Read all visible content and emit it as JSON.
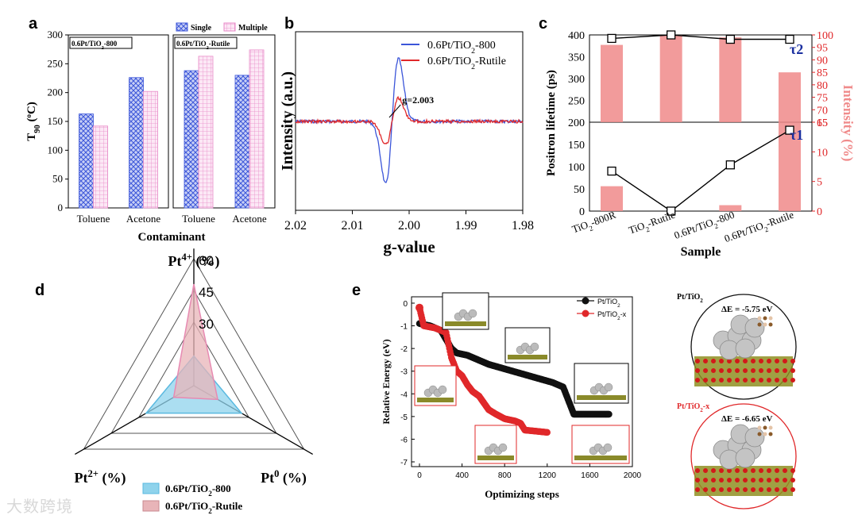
{
  "panels": {
    "a": {
      "label": "a"
    },
    "b": {
      "label": "b"
    },
    "c": {
      "label": "c"
    },
    "d": {
      "label": "d"
    },
    "e": {
      "label": "e"
    }
  },
  "watermark": "大数跨境",
  "colors": {
    "blue": "#3b55d9",
    "pink": "#e88ac8",
    "red": "#e0282a",
    "salmon": "#f08a8a",
    "cyan": "#8fd3ec",
    "rose": "#e8b4b8",
    "black": "#111111"
  },
  "chart_data": [
    {
      "id": "a",
      "type": "bar",
      "ylabel": "T90 (ºC)",
      "xlabel": "Contaminant",
      "ylim": [
        0,
        300
      ],
      "yticks": [
        0,
        50,
        100,
        150,
        200,
        250,
        300
      ],
      "legend": [
        "Single",
        "Multiple"
      ],
      "groups": [
        {
          "box_label": "0.6Pt/TiO2-800",
          "categories": [
            "Toluene",
            "Acetone"
          ],
          "Single": [
            163,
            226
          ],
          "Multiple": [
            142,
            202
          ]
        },
        {
          "box_label": "0.6Pt/TiO2-Rutile",
          "categories": [
            "Toluene",
            "Acetone"
          ],
          "Single": [
            238,
            230
          ],
          "Multiple": [
            263,
            274
          ]
        }
      ]
    },
    {
      "id": "b",
      "type": "line",
      "xlabel": "g-value",
      "ylabel": "Intensity (a.u.)",
      "xlim": [
        2.02,
        1.98
      ],
      "xticks": [
        "2.02",
        "2.01",
        "2.00",
        "1.99",
        "1.98"
      ],
      "annotation": "g=2.003",
      "series": [
        {
          "name": "0.6Pt/TiO2-800",
          "color": "#3b55d9"
        },
        {
          "name": "0.6Pt/TiO2-Rutile",
          "color": "#e0282a"
        }
      ]
    },
    {
      "id": "c",
      "type": "bar",
      "xlabel": "Sample",
      "ylabel_left": "Positron lifetime (ps)",
      "ylabel_right": "Intensity (%)",
      "categories": [
        "TiO2-800R",
        "TiO2-Rutile",
        "0.6Pt/TiO2-800",
        "0.6Pt/TiO2-Rutile"
      ],
      "top": {
        "ylim_left": [
          200,
          400
        ],
        "ylim_right": [
          65,
          100
        ],
        "yticks_left": [
          200,
          250,
          300,
          350,
          400
        ],
        "yticks_right": [
          65,
          70,
          75,
          80,
          85,
          90,
          95,
          100
        ],
        "tau2_ps": [
          392,
          400,
          390,
          390
        ],
        "intensity_pct": [
          96,
          100,
          99,
          85
        ],
        "series_label": "τ2"
      },
      "bottom": {
        "ylim_left": [
          0,
          200
        ],
        "ylim_right": [
          0,
          15
        ],
        "yticks_left": [
          0,
          50,
          100,
          150,
          200
        ],
        "yticks_right": [
          0,
          5,
          10,
          15
        ],
        "tau1_ps": [
          90,
          0,
          104,
          182
        ],
        "intensity_pct": [
          4.2,
          0,
          1.0,
          15
        ],
        "series_label": "τ1"
      }
    },
    {
      "id": "d",
      "type": "radar",
      "axes": [
        "Pt4+ (%)",
        "Pt0 (%)",
        "Pt2+ (%)"
      ],
      "rings": [
        30,
        45,
        60
      ],
      "max": 60,
      "series": [
        {
          "name": "0.6Pt/TiO2-800",
          "color": "#8fd3ec",
          "values": [
            14,
            26,
            26
          ]
        },
        {
          "name": "0.6Pt/TiO2-Rutile",
          "color": "#e8b4b8",
          "values": [
            48,
            13,
            11
          ]
        }
      ]
    },
    {
      "id": "e",
      "type": "scatter",
      "xlabel": "Optimizing steps",
      "ylabel": "Relative Energy (eV)",
      "xlim": [
        0,
        2000
      ],
      "ylim": [
        -7,
        0
      ],
      "xticks": [
        0,
        400,
        800,
        1200,
        1600,
        2000
      ],
      "yticks": [
        0,
        -1,
        -2,
        -3,
        -4,
        -5,
        -6,
        -7
      ],
      "series": [
        {
          "name": "Pt/TiO2",
          "color": "#111111",
          "points": [
            [
              0,
              -0.9
            ],
            [
              100,
              -1.0
            ],
            [
              200,
              -1.2
            ],
            [
              250,
              -1.6
            ],
            [
              300,
              -2.0
            ],
            [
              350,
              -2.2
            ],
            [
              450,
              -2.3
            ],
            [
              550,
              -2.5
            ],
            [
              650,
              -2.7
            ],
            [
              800,
              -2.9
            ],
            [
              950,
              -3.1
            ],
            [
              1100,
              -3.3
            ],
            [
              1250,
              -3.5
            ],
            [
              1350,
              -3.7
            ],
            [
              1400,
              -4.3
            ],
            [
              1450,
              -4.9
            ],
            [
              1600,
              -4.9
            ],
            [
              1780,
              -4.9
            ]
          ]
        },
        {
          "name": "Pt/TiO2-x",
          "color": "#e0282a",
          "points": [
            [
              0,
              -0.2
            ],
            [
              40,
              -1.0
            ],
            [
              150,
              -1.1
            ],
            [
              250,
              -1.3
            ],
            [
              300,
              -2.4
            ],
            [
              350,
              -3.0
            ],
            [
              400,
              -3.2
            ],
            [
              450,
              -3.6
            ],
            [
              500,
              -3.9
            ],
            [
              560,
              -4.1
            ],
            [
              650,
              -4.7
            ],
            [
              720,
              -4.9
            ],
            [
              800,
              -5.1
            ],
            [
              900,
              -5.2
            ],
            [
              950,
              -5.3
            ],
            [
              990,
              -5.6
            ],
            [
              1100,
              -5.65
            ],
            [
              1200,
              -5.7
            ]
          ]
        }
      ],
      "structures": [
        {
          "title": "Pt/TiO2",
          "energy": "ΔE = -5.75 eV"
        },
        {
          "title": "Pt/TiO2-x",
          "energy": "ΔE = -6.65 eV"
        }
      ]
    }
  ]
}
